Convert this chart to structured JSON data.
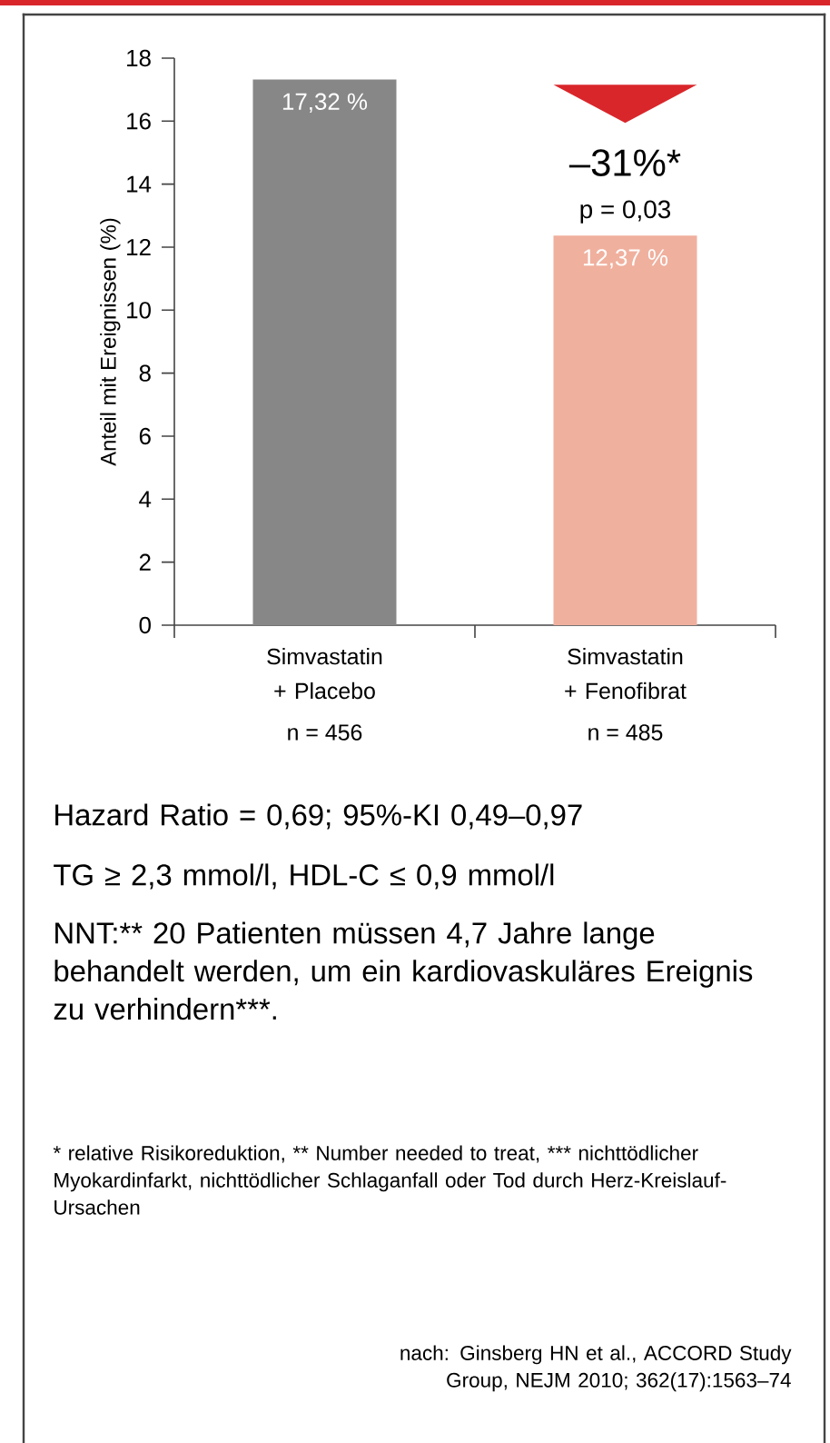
{
  "chart_data": {
    "type": "bar",
    "ylabel": "Anteil mit Ereignissen (%)",
    "categories": [
      "Simvastatin + Placebo",
      "Simvastatin + Fenofibrat"
    ],
    "values": [
      17.32,
      12.37
    ],
    "colors": [
      "#878787",
      "#f0b09e"
    ],
    "value_labels": [
      "17,32 %",
      "12,37 %"
    ],
    "ylim": [
      0,
      18
    ],
    "yticks": [
      0,
      2,
      4,
      6,
      8,
      10,
      12,
      14,
      16,
      18
    ],
    "annotations": [
      "–31%*",
      "p = 0,03",
      "n = 456",
      "n = 485",
      "Hazard Ratio = 0,69; 95%-KI 0,49–0,97",
      "TG ≥ 2,3 mmol/l, HDL-C ≤ 0,9 mmol/l",
      "NNT:** 20 Patienten müssen 4,7 Jahre lange behandelt werden, um ein kardiovaskuläres Ereignis zu verhindern***.",
      "* relative Risikoreduktion,  ** Number needed to treat, *** nichttödlicher Myokardinfarkt, nichttödlicher Schlaganfall oder Tod durch Herz-Kreislauf-Ursachen",
      "nach: Ginsberg HN et al., ACCORD Study Group, NEJM 2010; 362(17):1563–74"
    ]
  }
}
